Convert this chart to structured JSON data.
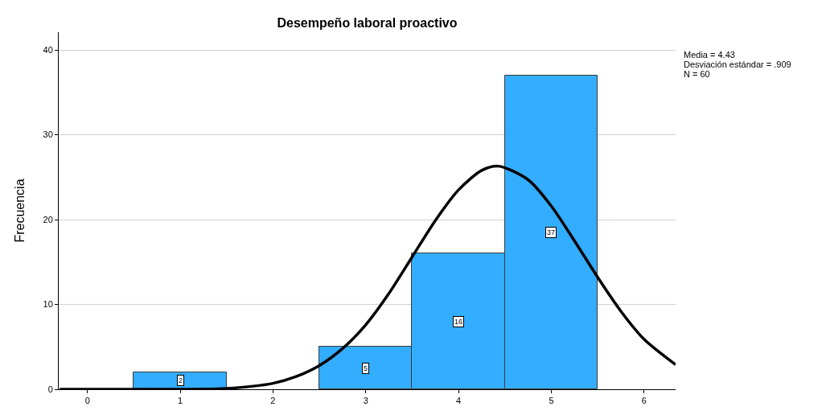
{
  "chart_data": {
    "type": "histogram",
    "title": "Desempeño laboral proactivo",
    "ylabel": "Frecuencia",
    "bins": [
      0.5,
      1.5,
      2.5,
      3.5,
      4.5,
      5.5
    ],
    "values": [
      2,
      0,
      5,
      16,
      37
    ],
    "value_labels": [
      "2",
      null,
      "5",
      "16",
      "37"
    ],
    "color": "#33adff",
    "series": [
      {
        "type": "line",
        "color": "#000000",
        "x": [
          -0.3,
          0,
          0.5,
          1,
          1.5,
          2,
          2.25,
          2.5,
          2.75,
          3,
          3.25,
          3.5,
          3.75,
          4,
          4.25,
          4.43,
          4.75,
          5,
          5.25,
          5.5,
          5.75,
          6,
          6.34
        ],
        "values": [
          0,
          0,
          0,
          0,
          0.1,
          0.7,
          1.5,
          2.8,
          4.8,
          7.6,
          11.3,
          15.6,
          19.9,
          23.5,
          25.8,
          26.3,
          24.7,
          21.6,
          17.5,
          13.2,
          9.2,
          5.9,
          2.9
        ]
      }
    ],
    "annotations": [
      "Media = 4.43",
      "Desviación estándar = .909",
      "N = 60"
    ],
    "xlim": [
      -0.31,
      6.34
    ],
    "xticks": [
      0,
      1,
      2,
      3,
      4,
      5,
      6
    ],
    "ylim": [
      0,
      42.1
    ],
    "yticks": [
      0,
      10,
      20,
      30,
      40
    ],
    "grid": "y",
    "marker": "none",
    "line_style": "solid"
  }
}
